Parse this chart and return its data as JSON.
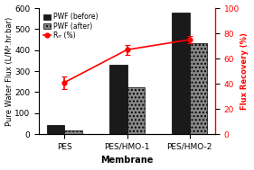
{
  "categories": [
    "PES",
    "PES/HMO-1",
    "PES/HMO-2"
  ],
  "pwf_before": [
    45,
    330,
    578
  ],
  "pwf_after": [
    18,
    222,
    435
  ],
  "rr": [
    41,
    67,
    75
  ],
  "rr_yerr": [
    5,
    4,
    3
  ],
  "ylim_left": [
    0,
    600
  ],
  "ylim_right": [
    0,
    100
  ],
  "yticks_left": [
    0,
    100,
    200,
    300,
    400,
    500,
    600
  ],
  "yticks_right": [
    0,
    20,
    40,
    60,
    80,
    100
  ],
  "ylabel_left": "Pure Water Flux (L/M².hr.bar)",
  "ylabel_right": "Flux Recovery (%)",
  "xlabel": "Membrane",
  "legend_labels": [
    "PWF (before)",
    "PWF (after)",
    "Rᵣᵣ (%)"
  ],
  "bar_color_before": "#1a1a1a",
  "bar_color_after": "#888888",
  "line_color": "#ff0000",
  "bar_width": 0.28,
  "bar_hatch_after": "....",
  "background_color": "#ffffff",
  "plot_bg_color": "#ffffff",
  "fontsize": 6.5,
  "label_fontsize": 7
}
